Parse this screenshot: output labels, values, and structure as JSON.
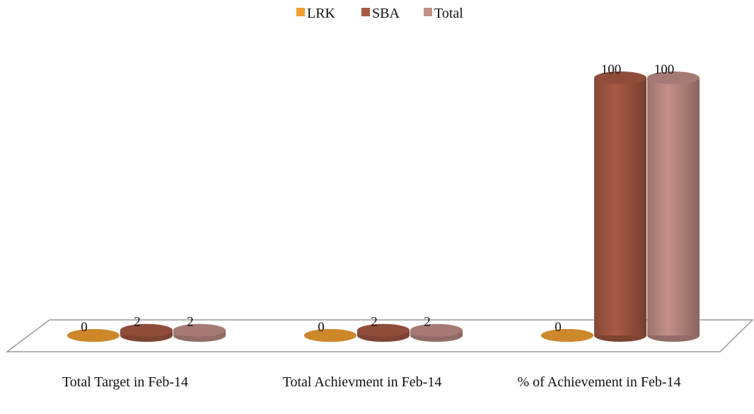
{
  "chart_data": {
    "type": "bar3d",
    "categories": [
      "Total Target in Feb-14",
      "Total Achievment in Feb-14",
      "% of Achievement in Feb-14"
    ],
    "series": [
      {
        "name": "LRK",
        "color": "#f0a030",
        "values": [
          0,
          0,
          0
        ]
      },
      {
        "name": "SBA",
        "color": "#a85a44",
        "values": [
          2,
          2,
          100
        ]
      },
      {
        "name": "Total",
        "color": "#c39088",
        "values": [
          2,
          2,
          100
        ]
      }
    ],
    "legend": "top"
  }
}
